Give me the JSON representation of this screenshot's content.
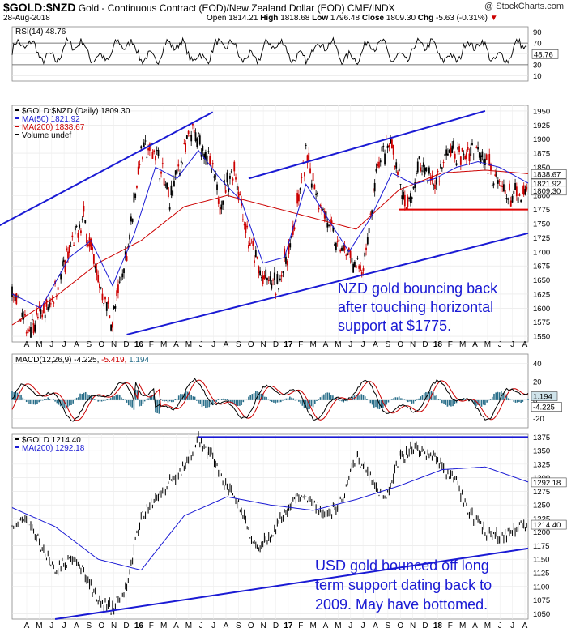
{
  "header": {
    "symbol": "$GOLD:$NZD",
    "description": "Gold - Continuous Contract (EOD)/New Zealand Dollar (EOD)",
    "exchange": "CME/INDX",
    "date": "28-Aug-2018",
    "open_label": "Open",
    "open": "1814.21",
    "high_label": "High",
    "high": "1818.68",
    "low_label": "Low",
    "low": "1796.48",
    "close_label": "Close",
    "close": "1809.30",
    "chg_label": "Chg",
    "chg": "-5.63 (-0.31%)",
    "watermark": "@ StockCharts.com"
  },
  "colors": {
    "price": "#000000",
    "ma50": "#1a1ad4",
    "ma200": "#cc0000",
    "trend": "#1a1ad4",
    "support": "#e00000",
    "macd_hist": "#2a6f8a",
    "down_candle": "#cc0000"
  },
  "chart_data": [
    {
      "type": "line",
      "title": "RSI(14) 48.76",
      "ylim": [
        0,
        100
      ],
      "y_ticks": [
        "90",
        "70",
        "50",
        "30",
        "10"
      ],
      "last_value": "48.76",
      "levels": [
        70,
        30
      ]
    },
    {
      "type": "candlestick",
      "legend": [
        "$GOLD:$NZD (Daily) 1809.30",
        "MA(50) 1821.92",
        "MA(200) 1838.67",
        "Volume undef"
      ],
      "ylim": [
        1540,
        1960
      ],
      "y_ticks": [
        "1950",
        "1925",
        "1900",
        "1875",
        "1850",
        "1825",
        "1800",
        "1775",
        "1750",
        "1725",
        "1700",
        "1675",
        "1650",
        "1625",
        "1600",
        "1575",
        "1550"
      ],
      "x_ticks": [
        "A",
        "M",
        "J",
        "J",
        "A",
        "S",
        "O",
        "N",
        "D",
        "16",
        "F",
        "M",
        "A",
        "M",
        "J",
        "J",
        "A",
        "S",
        "O",
        "N",
        "D",
        "17",
        "F",
        "M",
        "A",
        "M",
        "J",
        "J",
        "A",
        "S",
        "O",
        "N",
        "D",
        "18",
        "F",
        "M",
        "A",
        "M",
        "J",
        "J",
        "A"
      ],
      "x_ticks_bold": [
        "16",
        "17",
        "18"
      ],
      "price_path": [
        [
          0,
          1620
        ],
        [
          2,
          1565
        ],
        [
          5,
          1600
        ],
        [
          8,
          1700
        ],
        [
          10,
          1760
        ],
        [
          12,
          1650
        ],
        [
          14,
          1575
        ],
        [
          16,
          1700
        ],
        [
          18,
          1880
        ],
        [
          20,
          1880
        ],
        [
          22,
          1790
        ],
        [
          23,
          1840
        ],
        [
          25,
          1910
        ],
        [
          27,
          1880
        ],
        [
          29,
          1790
        ],
        [
          31,
          1850
        ],
        [
          33,
          1720
        ],
        [
          35,
          1650
        ],
        [
          37,
          1640
        ],
        [
          39,
          1720
        ],
        [
          41,
          1870
        ],
        [
          43,
          1790
        ],
        [
          45,
          1720
        ],
        [
          47,
          1690
        ],
        [
          49,
          1660
        ],
        [
          51,
          1860
        ],
        [
          53,
          1890
        ],
        [
          55,
          1770
        ],
        [
          57,
          1860
        ],
        [
          59,
          1820
        ],
        [
          61,
          1880
        ],
        [
          63,
          1870
        ],
        [
          65,
          1890
        ],
        [
          67,
          1840
        ],
        [
          69,
          1800
        ],
        [
          71,
          1795
        ],
        [
          72,
          1809.3
        ]
      ],
      "ma50_path": [
        [
          0,
          1625
        ],
        [
          4,
          1600
        ],
        [
          8,
          1690
        ],
        [
          11,
          1720
        ],
        [
          14,
          1640
        ],
        [
          17,
          1730
        ],
        [
          20,
          1850
        ],
        [
          23,
          1830
        ],
        [
          26,
          1880
        ],
        [
          29,
          1830
        ],
        [
          32,
          1790
        ],
        [
          35,
          1680
        ],
        [
          38,
          1690
        ],
        [
          41,
          1820
        ],
        [
          44,
          1760
        ],
        [
          47,
          1700
        ],
        [
          50,
          1760
        ],
        [
          53,
          1840
        ],
        [
          56,
          1820
        ],
        [
          59,
          1830
        ],
        [
          62,
          1850
        ],
        [
          65,
          1860
        ],
        [
          68,
          1850
        ],
        [
          72,
          1821.92
        ]
      ],
      "ma200_path": [
        [
          0,
          1570
        ],
        [
          6,
          1620
        ],
        [
          12,
          1680
        ],
        [
          18,
          1720
        ],
        [
          24,
          1780
        ],
        [
          30,
          1800
        ],
        [
          36,
          1780
        ],
        [
          42,
          1760
        ],
        [
          48,
          1740
        ],
        [
          54,
          1810
        ],
        [
          60,
          1840
        ],
        [
          66,
          1845
        ],
        [
          72,
          1838.67
        ]
      ],
      "last_labels": [
        "1838.67",
        "1821.92",
        "1809.30"
      ],
      "upper_trend": [
        [
          -2,
          1745
        ],
        [
          28,
          1948
        ]
      ],
      "upper_trend2": [
        [
          33,
          1830
        ],
        [
          66,
          1950
        ]
      ],
      "lower_trend": [
        [
          16,
          1553
        ],
        [
          72,
          1733
        ]
      ],
      "support_line": {
        "value": 1775,
        "x_start": 54,
        "x_end": 72
      },
      "annotation": [
        "NZD gold bouncing back",
        "after touching horizontal",
        "support at $1775."
      ]
    },
    {
      "type": "line",
      "title": "MACD(12,26,9)",
      "values": [
        "-4.225",
        "-5.419",
        "1.194"
      ],
      "ylim": [
        -30,
        50
      ],
      "y_ticks": [
        "40",
        "20",
        "0",
        "-20"
      ],
      "last_labels": [
        "1.194",
        "-4.225"
      ]
    },
    {
      "type": "line",
      "legend": [
        "$GOLD 1214.40",
        "MA(200) 1292.18"
      ],
      "ylim": [
        1040,
        1380
      ],
      "y_ticks": [
        "1375",
        "1350",
        "1325",
        "1300",
        "1275",
        "1250",
        "1225",
        "1200",
        "1175",
        "1150",
        "1125",
        "1100",
        "1075",
        "1050"
      ],
      "x_ticks": [
        "A",
        "M",
        "J",
        "J",
        "A",
        "S",
        "O",
        "N",
        "D",
        "16",
        "F",
        "M",
        "A",
        "M",
        "J",
        "J",
        "A",
        "S",
        "O",
        "N",
        "D",
        "17",
        "F",
        "M",
        "A",
        "M",
        "J",
        "J",
        "A",
        "S",
        "O",
        "N",
        "D",
        "18",
        "F",
        "M",
        "A",
        "M",
        "J",
        "J",
        "A"
      ],
      "x_ticks_bold": [
        "16",
        "17",
        "18"
      ],
      "price_path": [
        [
          0,
          1210
        ],
        [
          2,
          1225
        ],
        [
          4,
          1175
        ],
        [
          6,
          1130
        ],
        [
          8,
          1150
        ],
        [
          10,
          1130
        ],
        [
          12,
          1070
        ],
        [
          14,
          1060
        ],
        [
          16,
          1100
        ],
        [
          18,
          1230
        ],
        [
          20,
          1260
        ],
        [
          22,
          1290
        ],
        [
          24,
          1320
        ],
        [
          26,
          1370
        ],
        [
          28,
          1340
        ],
        [
          30,
          1280
        ],
        [
          32,
          1240
        ],
        [
          34,
          1170
        ],
        [
          36,
          1190
        ],
        [
          38,
          1235
        ],
        [
          40,
          1270
        ],
        [
          42,
          1255
        ],
        [
          44,
          1230
        ],
        [
          46,
          1260
        ],
        [
          48,
          1340
        ],
        [
          50,
          1300
        ],
        [
          52,
          1260
        ],
        [
          54,
          1335
        ],
        [
          56,
          1355
        ],
        [
          58,
          1345
        ],
        [
          60,
          1325
        ],
        [
          62,
          1290
        ],
        [
          64,
          1230
        ],
        [
          66,
          1200
        ],
        [
          68,
          1190
        ],
        [
          70,
          1205
        ],
        [
          72,
          1214.4
        ]
      ],
      "ma200_path": [
        [
          0,
          1245
        ],
        [
          6,
          1210
        ],
        [
          12,
          1150
        ],
        [
          18,
          1130
        ],
        [
          24,
          1230
        ],
        [
          30,
          1265
        ],
        [
          36,
          1250
        ],
        [
          42,
          1240
        ],
        [
          48,
          1260
        ],
        [
          54,
          1285
        ],
        [
          60,
          1315
        ],
        [
          66,
          1320
        ],
        [
          72,
          1292.18
        ]
      ],
      "last_labels": [
        "1292.18",
        "1214.40"
      ],
      "resistance_line": {
        "value": 1375,
        "x_start": 26,
        "x_end": 72
      },
      "lower_trend": [
        [
          6,
          1040
        ],
        [
          72,
          1170
        ]
      ],
      "annotation": [
        "USD gold bounced off long",
        "term support dating back to",
        "2009. May have bottomed."
      ]
    }
  ]
}
